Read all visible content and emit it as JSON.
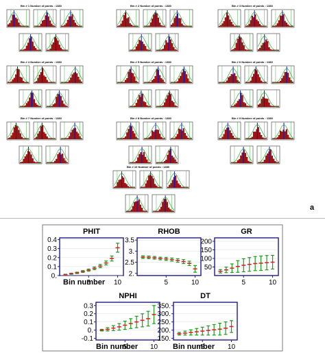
{
  "figure": {
    "panel_a_label": "a",
    "bin_header_suffix": "Number of points : 1380",
    "bin_headers": [
      "Bin # 1",
      "Bin # 2",
      "Bin # 3",
      "Bin # 4",
      "Bin # 5",
      "Bin # 6",
      "Bin # 7",
      "Bin # 8",
      "Bin # 9",
      "Bin # 10"
    ]
  },
  "colors": {
    "bar": "#a01010",
    "bar_edge": "#5a0000",
    "median": "#1010c0",
    "fit": "#10a010",
    "errbar": "#1a9a1a",
    "mean": "#e02020",
    "axis": "#1a1a8a"
  },
  "chart_data": [
    {
      "type": "scatter",
      "title": "PHIT",
      "xlabel": "Bin number",
      "ylabel": "",
      "x": [
        1,
        2,
        3,
        4,
        5,
        6,
        7,
        8,
        9,
        10
      ],
      "y": [
        0.01,
        0.02,
        0.03,
        0.045,
        0.06,
        0.08,
        0.105,
        0.14,
        0.19,
        0.31
      ],
      "err": [
        0.005,
        0.006,
        0.008,
        0.01,
        0.012,
        0.015,
        0.018,
        0.022,
        0.028,
        0.05
      ],
      "xlim": [
        0,
        11
      ],
      "ylim": [
        0,
        0.42
      ],
      "xticks": [
        "5",
        "10"
      ],
      "yticks": [
        "0.",
        "0.1",
        "0.2",
        "0.3",
        "0.4"
      ]
    },
    {
      "type": "scatter",
      "title": "RHOB",
      "xlabel": "",
      "ylabel": "",
      "x": [
        1,
        2,
        3,
        4,
        5,
        6,
        7,
        8,
        9,
        10
      ],
      "y": [
        2.73,
        2.72,
        2.7,
        2.67,
        2.65,
        2.62,
        2.58,
        2.53,
        2.45,
        2.2
      ],
      "err": [
        0.06,
        0.06,
        0.06,
        0.06,
        0.07,
        0.07,
        0.08,
        0.09,
        0.1,
        0.15
      ],
      "xlim": [
        0,
        11
      ],
      "ylim": [
        1.9,
        3.6
      ],
      "xticks": [
        "5",
        "10"
      ],
      "yticks": [
        "2.",
        "2.5",
        "3.",
        "3.5"
      ]
    },
    {
      "type": "scatter",
      "title": "GR",
      "xlabel": "",
      "ylabel": "",
      "x": [
        1,
        2,
        3,
        4,
        5,
        6,
        7,
        8,
        9,
        10
      ],
      "y": [
        25,
        33,
        43,
        53,
        60,
        65,
        70,
        72,
        75,
        78
      ],
      "err": [
        10,
        16,
        25,
        34,
        38,
        40,
        41,
        42,
        42,
        40
      ],
      "xlim": [
        0,
        11
      ],
      "ylim": [
        0,
        220
      ],
      "xticks": [
        "5",
        "10"
      ],
      "yticks": [
        "50",
        "100",
        "150",
        "200"
      ]
    },
    {
      "type": "scatter",
      "title": "NPHI",
      "xlabel": "Bin number",
      "ylabel": "",
      "x": [
        1,
        2,
        3,
        4,
        5,
        6,
        7,
        8,
        9,
        10
      ],
      "y": [
        0.0,
        0.01,
        0.025,
        0.04,
        0.06,
        0.08,
        0.1,
        0.12,
        0.14,
        0.19
      ],
      "err": [
        0.01,
        0.02,
        0.03,
        0.04,
        0.05,
        0.06,
        0.07,
        0.08,
        0.09,
        0.11
      ],
      "xlim": [
        0,
        11
      ],
      "ylim": [
        -0.12,
        0.34
      ],
      "xticks": [
        "5",
        "10"
      ],
      "yticks": [
        "-0.1",
        "0.",
        "0.1",
        "0.2",
        "0.3"
      ]
    },
    {
      "type": "scatter",
      "title": "DT",
      "xlabel": "Bin number",
      "ylabel": "",
      "x": [
        1,
        2,
        3,
        4,
        5,
        6,
        7,
        8,
        9,
        10
      ],
      "y": [
        178,
        182,
        186,
        190,
        194,
        198,
        202,
        206,
        212,
        222
      ],
      "err": [
        8,
        12,
        16,
        20,
        24,
        28,
        32,
        36,
        38,
        36
      ],
      "xlim": [
        0,
        11
      ],
      "ylim": [
        140,
        370
      ],
      "xticks": [
        "5",
        "10"
      ],
      "yticks": [
        "150.",
        "200.",
        "250.",
        "300.",
        "350."
      ]
    }
  ]
}
